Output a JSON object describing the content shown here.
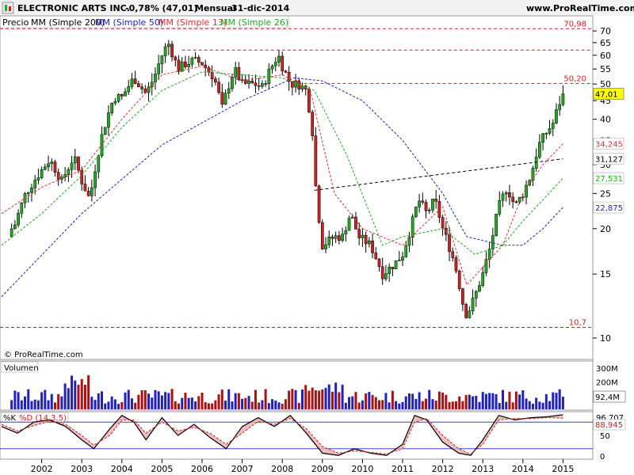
{
  "header": {
    "title": "ELECTRONIC ARTS INC.",
    "change": "-0,78% (47,01)",
    "period": "Mensual",
    "date": "31-dic-2014",
    "site": "www.ProRealTime.com"
  },
  "legend": {
    "price": "Precio",
    "ma200": "MM (Simple 200)",
    "ma50": "MM (Simple 50)",
    "ma13": "MM (Simple 13)",
    "ma26": "MM (Simple 26)"
  },
  "copyright": "© ProRealTime.com",
  "volume_panel": {
    "title": "Volumen"
  },
  "stoch_panel": {
    "k_label": "%K",
    "d_label": "%D (14,3,5)"
  },
  "colors": {
    "up": "#22aa22",
    "down": "#cc2222",
    "ma200": "#000000",
    "ma50": "#2222bb",
    "ma13": "#dd3333",
    "ma26": "#22aa22",
    "hline": "#cc2222",
    "price_tag": "#ffff00",
    "stoch_d_fill": "#e8b0b0",
    "stoch_k_fill": "#b0b0e0"
  },
  "chart_data": [
    {
      "type": "candlestick",
      "title": "ELECTRONIC ARTS INC.",
      "ylabel": "",
      "ylim": [
        9,
        74
      ],
      "y_ticks": [
        10,
        15,
        20,
        25,
        30,
        35,
        40,
        45,
        50,
        55,
        60,
        65,
        70
      ],
      "x_ticks": [
        "2002",
        "2003",
        "2004",
        "2005",
        "2006",
        "2007",
        "2008",
        "2009",
        "2010",
        "2011",
        "2012",
        "2013",
        "2014",
        "2015"
      ],
      "horizontal_lines": [
        {
          "value": 70.98,
          "label": "70,98",
          "span": "full"
        },
        {
          "value": 62,
          "label": "",
          "span": "from-2005"
        },
        {
          "value": 50.2,
          "label": "50,20",
          "span": "from-2008"
        },
        {
          "value": 10.7,
          "label": "10,7",
          "span": "full"
        }
      ],
      "last_price": {
        "value": 47.01,
        "label": "47,01"
      },
      "ma_tags": [
        {
          "value": 34.245,
          "label": "34,245",
          "series": "MM (Simple 13)"
        },
        {
          "value": 31.127,
          "label": "31,127",
          "series": "MM (Simple 200)"
        },
        {
          "value": 27.531,
          "label": "27,531",
          "series": "MM (Simple 26)"
        },
        {
          "value": 22.875,
          "label": "22,875",
          "series": "MM (Simple 50)"
        }
      ],
      "ohlc_anchors_close": [
        {
          "date": 2001.3,
          "close": 20.0
        },
        {
          "date": 2001.6,
          "close": 25.0
        },
        {
          "date": 2001.9,
          "close": 28.0
        },
        {
          "date": 2002.2,
          "close": 31.0
        },
        {
          "date": 2002.5,
          "close": 27.0
        },
        {
          "date": 2002.8,
          "close": 31.5
        },
        {
          "date": 2003.0,
          "close": 27.0
        },
        {
          "date": 2003.2,
          "close": 24.0
        },
        {
          "date": 2003.5,
          "close": 36.0
        },
        {
          "date": 2003.8,
          "close": 46.0
        },
        {
          "date": 2004.0,
          "close": 46.0
        },
        {
          "date": 2004.3,
          "close": 52.0
        },
        {
          "date": 2004.6,
          "close": 47.0
        },
        {
          "date": 2004.8,
          "close": 52.0
        },
        {
          "date": 2005.0,
          "close": 60.0
        },
        {
          "date": 2005.15,
          "close": 65.0
        },
        {
          "date": 2005.4,
          "close": 55.0
        },
        {
          "date": 2005.6,
          "close": 57.0
        },
        {
          "date": 2005.8,
          "close": 58.0
        },
        {
          "date": 2006.0,
          "close": 57.0
        },
        {
          "date": 2006.3,
          "close": 52.0
        },
        {
          "date": 2006.5,
          "close": 43.0
        },
        {
          "date": 2006.8,
          "close": 55.0
        },
        {
          "date": 2007.0,
          "close": 50.0
        },
        {
          "date": 2007.3,
          "close": 50.0
        },
        {
          "date": 2007.5,
          "close": 49.0
        },
        {
          "date": 2007.7,
          "close": 55.0
        },
        {
          "date": 2007.9,
          "close": 60.0
        },
        {
          "date": 2008.0,
          "close": 56.0
        },
        {
          "date": 2008.2,
          "close": 50.0
        },
        {
          "date": 2008.4,
          "close": 50.0
        },
        {
          "date": 2008.6,
          "close": 48.0
        },
        {
          "date": 2008.75,
          "close": 37.0
        },
        {
          "date": 2008.85,
          "close": 24.0
        },
        {
          "date": 2009.0,
          "close": 18.0
        },
        {
          "date": 2009.3,
          "close": 19.0
        },
        {
          "date": 2009.5,
          "close": 19.0
        },
        {
          "date": 2009.7,
          "close": 22.0
        },
        {
          "date": 2009.9,
          "close": 19.0
        },
        {
          "date": 2010.2,
          "close": 18.0
        },
        {
          "date": 2010.5,
          "close": 15.0
        },
        {
          "date": 2010.8,
          "close": 16.0
        },
        {
          "date": 2011.0,
          "close": 17.0
        },
        {
          "date": 2011.2,
          "close": 20.0
        },
        {
          "date": 2011.4,
          "close": 24.0
        },
        {
          "date": 2011.6,
          "close": 22.0
        },
        {
          "date": 2011.8,
          "close": 24.0
        },
        {
          "date": 2012.0,
          "close": 20.0
        },
        {
          "date": 2012.3,
          "close": 16.0
        },
        {
          "date": 2012.5,
          "close": 12.5
        },
        {
          "date": 2012.6,
          "close": 11.5
        },
        {
          "date": 2012.8,
          "close": 13.0
        },
        {
          "date": 2013.0,
          "close": 15.0
        },
        {
          "date": 2013.2,
          "close": 18.0
        },
        {
          "date": 2013.4,
          "close": 23.0
        },
        {
          "date": 2013.6,
          "close": 26.0
        },
        {
          "date": 2013.8,
          "close": 23.0
        },
        {
          "date": 2014.0,
          "close": 25.0
        },
        {
          "date": 2014.2,
          "close": 28.0
        },
        {
          "date": 2014.4,
          "close": 34.0
        },
        {
          "date": 2014.6,
          "close": 37.0
        },
        {
          "date": 2014.75,
          "close": 39.0
        },
        {
          "date": 2014.9,
          "close": 44.0
        },
        {
          "date": 2015.0,
          "close": 47.01
        }
      ],
      "series": [
        {
          "name": "MM (Simple 200)",
          "x": [
            2008.8,
            2015.0
          ],
          "y": [
            25.5,
            31.127
          ]
        },
        {
          "name": "MM (Simple 50)",
          "x": [
            2001.0,
            2003.0,
            2005.0,
            2007.0,
            2008.3,
            2009.0,
            2010.0,
            2011.0,
            2012.0,
            2012.6,
            2013.5,
            2014.0,
            2014.5,
            2015.0
          ],
          "y": [
            13,
            22,
            34,
            45,
            52,
            51,
            45,
            35,
            25,
            19,
            18,
            18,
            20,
            22.875
          ]
        },
        {
          "name": "MM (Simple 13)",
          "x": [
            2001.0,
            2002.0,
            2003.0,
            2004.0,
            2005.0,
            2006.0,
            2007.0,
            2008.0,
            2008.7,
            2009.3,
            2010.0,
            2011.0,
            2012.0,
            2012.6,
            2013.5,
            2014.0,
            2014.5,
            2015.0
          ],
          "y": [
            22,
            26,
            29,
            40,
            53,
            56,
            51,
            53,
            48,
            25,
            20,
            18,
            23,
            14,
            18,
            25,
            30,
            34.245
          ]
        },
        {
          "name": "MM (Simple 26)",
          "x": [
            2001.0,
            2002.0,
            2003.0,
            2004.0,
            2005.0,
            2006.0,
            2007.0,
            2008.0,
            2008.8,
            2009.6,
            2010.5,
            2011.0,
            2012.0,
            2012.8,
            2013.5,
            2014.0,
            2014.5,
            2015.0
          ],
          "y": [
            18,
            22,
            28,
            38,
            48,
            54,
            53,
            52,
            48,
            32,
            18,
            19,
            20,
            17,
            18,
            21,
            24,
            27.531
          ]
        }
      ]
    },
    {
      "type": "bar",
      "title": "Volumen",
      "y_ticks_labels": [
        "300M",
        "200M",
        "92,4M"
      ],
      "ylim": [
        0,
        330
      ],
      "last_value": {
        "value": 92.4,
        "label": "92,4M"
      },
      "x_range": [
        2001.0,
        2015.0
      ]
    },
    {
      "type": "line",
      "title": "%K %D (14,3,5)",
      "ylim": [
        0,
        100
      ],
      "value_labels": [
        "96,707",
        "88,945"
      ],
      "series": [
        {
          "name": "%K",
          "x": [
            2001.0,
            2001.4,
            2001.8,
            2002.2,
            2002.6,
            2003.0,
            2003.3,
            2003.7,
            2004.0,
            2004.3,
            2004.6,
            2005.0,
            2005.4,
            2005.8,
            2006.2,
            2006.6,
            2007.0,
            2007.4,
            2007.8,
            2008.2,
            2008.6,
            2009.0,
            2009.4,
            2009.8,
            2010.2,
            2010.6,
            2011.0,
            2011.3,
            2011.6,
            2012.0,
            2012.4,
            2012.7,
            2013.0,
            2013.4,
            2013.8,
            2014.2,
            2014.6,
            2015.0
          ],
          "y": [
            70,
            55,
            80,
            85,
            70,
            40,
            20,
            65,
            95,
            80,
            40,
            90,
            50,
            75,
            45,
            20,
            70,
            90,
            70,
            95,
            55,
            10,
            5,
            20,
            10,
            5,
            30,
            95,
            85,
            35,
            10,
            5,
            40,
            95,
            85,
            90,
            92,
            96.7
          ]
        },
        {
          "name": "%D",
          "x": [
            2001.0,
            2001.4,
            2001.8,
            2002.2,
            2002.6,
            2003.0,
            2003.3,
            2003.7,
            2004.0,
            2004.3,
            2004.6,
            2005.0,
            2005.4,
            2005.8,
            2006.2,
            2006.6,
            2007.0,
            2007.4,
            2007.8,
            2008.2,
            2008.6,
            2009.0,
            2009.4,
            2009.8,
            2010.2,
            2010.6,
            2011.0,
            2011.3,
            2011.6,
            2012.0,
            2012.4,
            2012.7,
            2013.0,
            2013.4,
            2013.8,
            2014.2,
            2014.6,
            2015.0
          ],
          "y": [
            75,
            60,
            72,
            82,
            75,
            50,
            28,
            50,
            85,
            85,
            55,
            80,
            60,
            68,
            55,
            30,
            55,
            82,
            75,
            88,
            65,
            25,
            10,
            15,
            12,
            8,
            20,
            80,
            88,
            50,
            20,
            8,
            30,
            85,
            88,
            88,
            90,
            88.9
          ]
        }
      ]
    }
  ]
}
